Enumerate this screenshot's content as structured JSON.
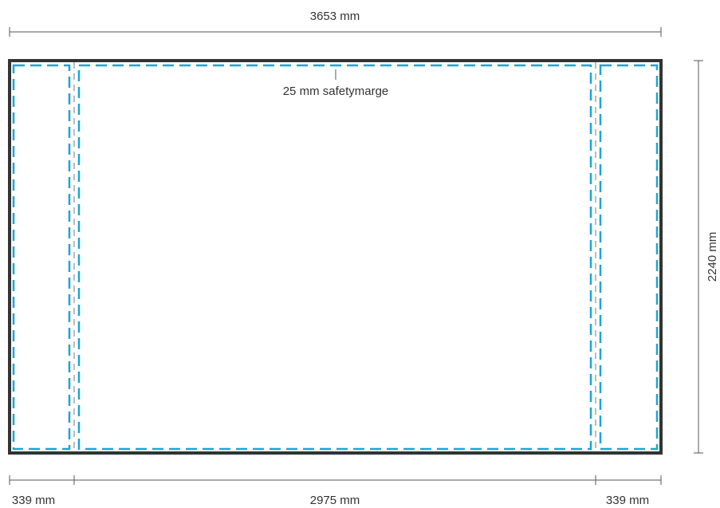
{
  "colors": {
    "frame": "#333333",
    "safety_margin": "#1aa6d6",
    "fold_line": "#bbbbbb",
    "dimension_line": "#555555"
  },
  "dimensions": {
    "total_width": "3653 mm",
    "height": "2240 mm",
    "left_panel": "339 mm",
    "center_panel": "2975 mm",
    "right_panel": "339 mm"
  },
  "annotations": {
    "safety_margin": "25 mm safetymarge"
  }
}
